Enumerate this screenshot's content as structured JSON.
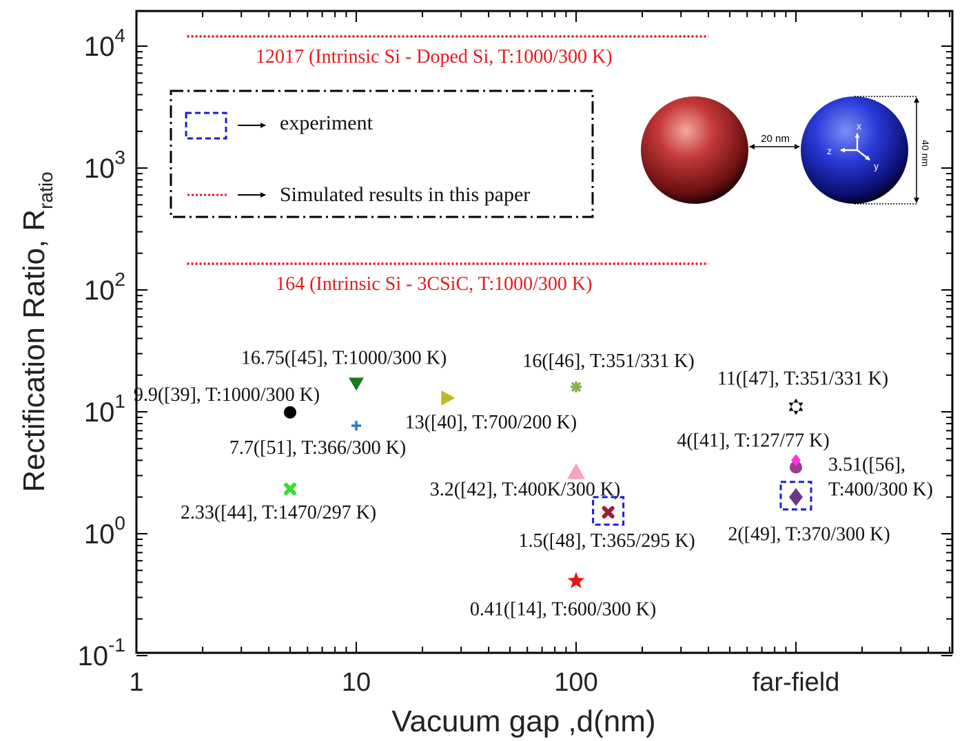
{
  "chart_data": {
    "type": "scatter",
    "xlabel": "Vacuum gap ,d(nm)",
    "ylabel_main": "Rectification Ratio, R",
    "ylabel_sub": "ratio",
    "xscale": "log",
    "yscale": "log",
    "xlim": [
      1,
      5000
    ],
    "ylim": [
      0.1,
      20000
    ],
    "x_ticks": [
      {
        "value": 1,
        "label": "1"
      },
      {
        "value": 10,
        "label": "10"
      },
      {
        "value": 100,
        "label": "100"
      },
      {
        "value": 1000,
        "label": "far-field"
      }
    ],
    "y_ticks": [
      {
        "value": 0.1,
        "base": "10",
        "exp": "-1"
      },
      {
        "value": 1,
        "base": "10",
        "exp": "0"
      },
      {
        "value": 10,
        "base": "10",
        "exp": "1"
      },
      {
        "value": 100,
        "base": "10",
        "exp": "2"
      },
      {
        "value": 1000,
        "base": "10",
        "exp": "3"
      },
      {
        "value": 10000,
        "base": "10",
        "exp": "4"
      }
    ],
    "grid": false,
    "reference_lines": [
      {
        "value": 12017,
        "x_range": [
          1.7,
          400
        ],
        "color": "#e8191c",
        "label": "12017 (Intrinsic Si - Doped Si, T:1000/300 K)"
      },
      {
        "value": 164,
        "x_range": [
          1.7,
          400
        ],
        "color": "#e8191c",
        "label": "164 (Intrinsic Si - 3CSiC, T:1000/300 K)"
      }
    ],
    "points": [
      {
        "x": 5,
        "y": 9.9,
        "marker": "circle",
        "color": "#000000",
        "label": "9.9([39], T:1000/300 K)"
      },
      {
        "x": 10,
        "y": 16.75,
        "marker": "triangle-down",
        "color": "#1a7a1a",
        "label": "16.75([45], T:1000/300 K)"
      },
      {
        "x": 10,
        "y": 7.7,
        "marker": "plus",
        "color": "#2a7bbf",
        "label": "7.7([51], T:366/300 K)"
      },
      {
        "x": 5,
        "y": 2.33,
        "marker": "x-bold",
        "color": "#33dd33",
        "label": "2.33([44], T:1470/297 K)"
      },
      {
        "x": 26,
        "y": 13,
        "marker": "triangle-right",
        "color": "#c2b820",
        "label": "13([40], T:700/200 K)"
      },
      {
        "x": 100,
        "y": 16,
        "marker": "asterisk",
        "color": "#8ab04a",
        "label": "16([46], T:351/331 K)"
      },
      {
        "x": 100,
        "y": 3.2,
        "marker": "triangle-up",
        "color": "#f4a3c3",
        "label": "3.2([42], T:400K/300 K)"
      },
      {
        "x": 140,
        "y": 1.5,
        "marker": "x-bold",
        "color": "#9a1a3a",
        "label": "1.5([48], T:365/295 K)"
      },
      {
        "x": 100,
        "y": 0.41,
        "marker": "star5",
        "color": "#ee1111",
        "label": "0.41([14], T:600/300 K)"
      },
      {
        "x": 1000,
        "y": 11,
        "marker": "hexagram",
        "color": "#000000",
        "label": "11([47], T:351/331 K)"
      },
      {
        "x": 1000,
        "y": 4,
        "marker": "diamond",
        "color": "#ff33dd",
        "label": "4([41], T:127/77 K)"
      },
      {
        "x": 1000,
        "y": 3.51,
        "marker": "circle",
        "color": "#9b3a8f",
        "label": "3.51([56], T:400/300 K)"
      },
      {
        "x": 1000,
        "y": 2,
        "marker": "diamond-large",
        "color": "#6e3585",
        "label": "2([49], T:370/300 K)"
      }
    ],
    "experiment_boxes": [
      {
        "x": 140,
        "y": 1.5
      },
      {
        "x": 1000,
        "y": 2
      }
    ],
    "legend": {
      "placement": "top-left",
      "entries": [
        {
          "symbol": "dashed-box",
          "color": "#1a1adc",
          "label": "experiment"
        },
        {
          "symbol": "dotted-line",
          "color": "#e8191c",
          "label": "Simulated results in this paper"
        }
      ]
    },
    "inset": {
      "gap_label": "20 nm",
      "size_label": "40 nm",
      "axis_x": "x",
      "axis_y": "y",
      "axis_z": "z",
      "sphere_left_color": "#c63a3a",
      "sphere_right_color": "#2a3ad8"
    }
  }
}
